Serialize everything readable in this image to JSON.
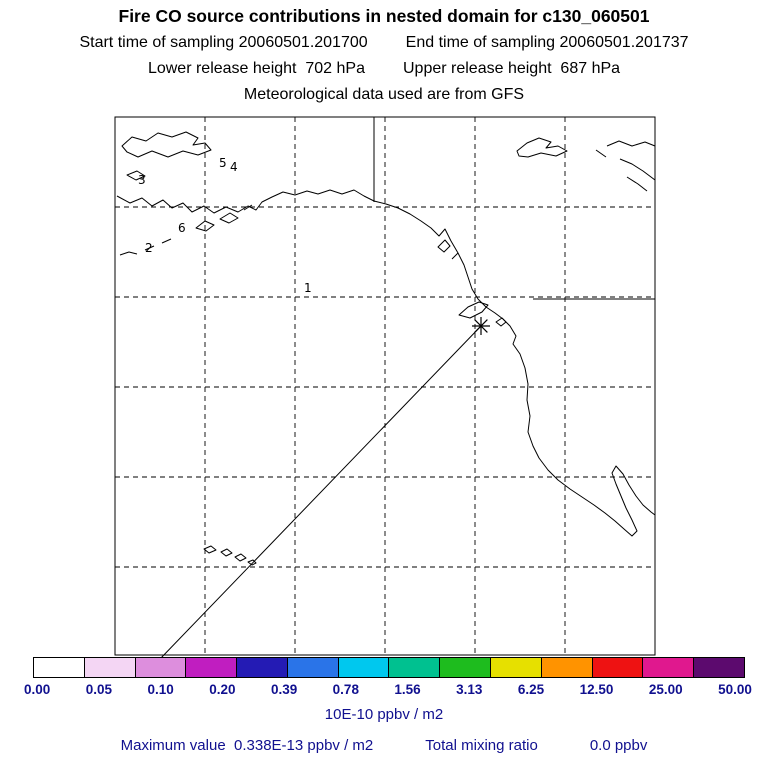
{
  "header": {
    "title": "Fire CO source contributions in nested domain for c130_060501",
    "start_time": "Start time of sampling 20060501.201700",
    "end_time": "End time of sampling 20060501.201737",
    "lower_release": "Lower release height  702 hPa",
    "upper_release": "Upper release height  687 hPa",
    "met_source": "Meteorological data used are from GFS"
  },
  "map": {
    "point_labels": [
      "5",
      "4",
      "3",
      "6",
      "2",
      "1"
    ],
    "marker": "asterisk-source-location"
  },
  "colorbar": {
    "labels": [
      "0.00",
      "0.05",
      "0.10",
      "0.20",
      "0.39",
      "0.78",
      "1.56",
      "3.13",
      "6.25",
      "12.50",
      "25.00",
      "50.00"
    ],
    "colors": [
      "#ffffff",
      "#f4d6f4",
      "#dd8edd",
      "#c01ec0",
      "#241bb4",
      "#2a74e8",
      "#00c8ee",
      "#00c190",
      "#1ebc1e",
      "#e6e000",
      "#ff9300",
      "#ee1212",
      "#e0188e",
      "#5c0a6e"
    ],
    "units": "10E-10 ppbv / m2",
    "text_color": "#10108f"
  },
  "footer": {
    "max_value": "Maximum value  0.338E-13 ppbv / m2",
    "total_mixing_label": "Total mixing ratio",
    "total_mixing_value": "0.0 ppbv"
  },
  "chart_data": {
    "type": "heatmap",
    "title": "Fire CO source contributions in nested domain for c130_060501",
    "subtitle_lines": [
      "Start time of sampling 20060501.201700    End time of sampling 20060501.201737",
      "Lower release height  702 hPa    Upper release height  687 hPa",
      "Meteorological data used are from GFS"
    ],
    "colorbar_levels": [
      0.0,
      0.05,
      0.1,
      0.2,
      0.39,
      0.78,
      1.56,
      3.13,
      6.25,
      12.5,
      25.0,
      50.0
    ],
    "colorbar_units": "10E-10 ppbv / m2",
    "colorbar_colors": [
      "#ffffff",
      "#f4d6f4",
      "#dd8edd",
      "#c01ec0",
      "#241bb4",
      "#2a74e8",
      "#00c8ee",
      "#00c190",
      "#1ebc1e",
      "#e6e000",
      "#ff9300",
      "#ee1212",
      "#e0188e",
      "#5c0a6e"
    ],
    "map_point_labels": [
      "5",
      "4",
      "3",
      "6",
      "2",
      "1"
    ],
    "source_marker": "asterisk on northwest coast of North America",
    "trajectory_line": "straight line from source marker toward lower-left corner of domain",
    "maximum_value": "0.338E-13 ppbv / m2",
    "total_mixing_ratio": "0.0 ppbv",
    "grid": "dashed lat-lon graticule, 6x6 cells",
    "legend_position": "bottom horizontal colorbar"
  }
}
